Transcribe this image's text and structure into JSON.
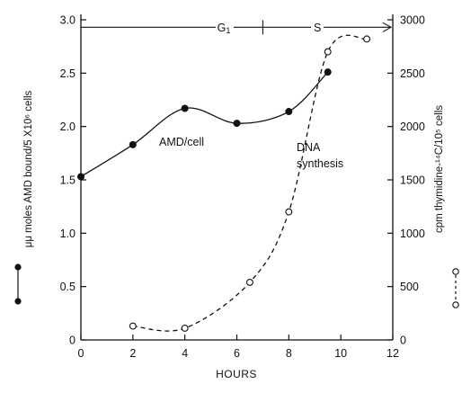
{
  "chart_data": {
    "type": "line",
    "xlabel": "HOURS",
    "ylabel_left": "μμ moles AMD bound/5 X10⁶ cells",
    "ylabel_right": "cpm  thymidine-¹⁴C/10⁵ cells",
    "xlim": [
      0,
      12
    ],
    "ylim_left": [
      0,
      3.0
    ],
    "ylim_right": [
      0,
      3000
    ],
    "x_ticks": [
      0,
      2,
      4,
      6,
      8,
      10,
      12
    ],
    "y_left_ticks": [
      0,
      0.5,
      1.0,
      1.5,
      2.0,
      2.5,
      3.0
    ],
    "y_left_tick_labels": [
      "0",
      "0.5",
      "1.0",
      "1.5",
      "2.0",
      "2.5",
      "3.0"
    ],
    "y_right_ticks": [
      0,
      500,
      1000,
      1500,
      2000,
      2500,
      3000
    ],
    "grid": false,
    "series": [
      {
        "axis": "left",
        "marker": "filled-circle",
        "line": "solid",
        "x": [
          0,
          2,
          4,
          6,
          8,
          9.5
        ],
        "y": [
          1.53,
          1.83,
          2.17,
          2.03,
          2.14,
          2.51
        ]
      },
      {
        "axis": "right",
        "marker": "open-circle",
        "line": "dashed",
        "x": [
          2,
          4,
          6.5,
          8,
          9.5,
          11
        ],
        "y": [
          130,
          110,
          540,
          1200,
          2700,
          2820
        ]
      }
    ],
    "annotations": {
      "amd_label": "AMD/cell",
      "dna_label_line1": "DNA",
      "dna_label_line2": "synthesis",
      "phase_g1": "G",
      "phase_g1_sub": "1",
      "phase_s": "S",
      "phase_boundary_hours": 7,
      "phase_line_y": 2.93
    },
    "colors": {
      "ink": "#111111",
      "background": "#ffffff"
    }
  }
}
